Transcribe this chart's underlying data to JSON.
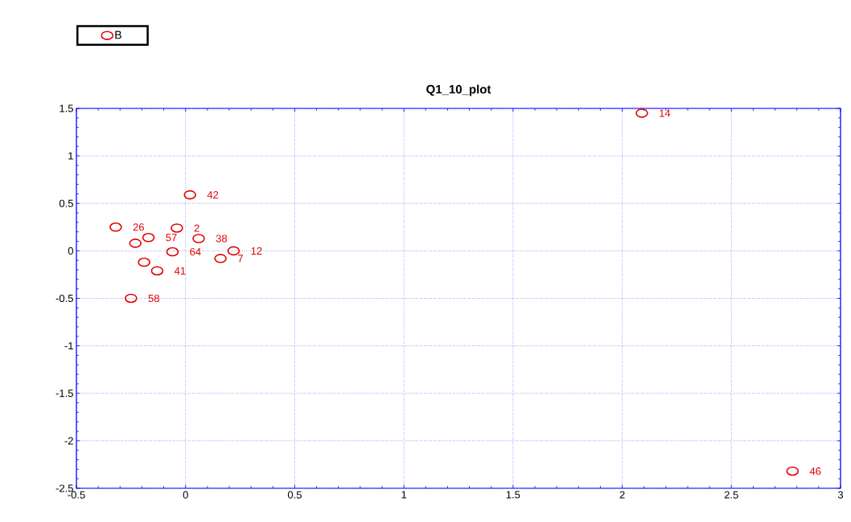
{
  "chart_data": {
    "type": "scatter",
    "title": "Q1_10_plot",
    "series": [
      {
        "name": "B",
        "color": "#e00000",
        "x": [
          2.09,
          0.02,
          -0.32,
          -0.23,
          -0.19,
          -0.13,
          -0.25,
          2.78,
          -0.17,
          -0.04,
          0.06,
          -0.06,
          0.22,
          0.16
        ],
        "values": [
          1.45,
          0.59,
          0.25,
          0.08,
          -0.12,
          -0.21,
          -0.5,
          -2.32,
          0.14,
          0.24,
          0.13,
          -0.01,
          0.0,
          -0.08
        ]
      }
    ],
    "xlim": [
      -0.5,
      3
    ],
    "ylim": [
      -2.5,
      1.5
    ],
    "xticks": [
      -0.5,
      0,
      0.5,
      1,
      1.5,
      2,
      2.5,
      3
    ],
    "yticks": [
      -2.5,
      -2,
      -1.5,
      -1,
      -0.5,
      0,
      0.5,
      1,
      1.5
    ],
    "grid": true,
    "legend": "top left",
    "marker": "circle",
    "annotations": [
      {
        "text": "14",
        "x": 2.09,
        "y": 1.45
      },
      {
        "text": "42",
        "x": 0.02,
        "y": 0.59
      },
      {
        "text": "26",
        "x": -0.32,
        "y": 0.25
      },
      {
        "text": "57",
        "x": -0.17,
        "y": 0.14
      },
      {
        "text": "2",
        "x": -0.04,
        "y": 0.24
      },
      {
        "text": "38",
        "x": 0.06,
        "y": 0.13
      },
      {
        "text": "64",
        "x": -0.06,
        "y": -0.01
      },
      {
        "text": "12",
        "x": 0.22,
        "y": 0.0
      },
      {
        "text": "7",
        "x": 0.16,
        "y": -0.08
      },
      {
        "text": "41",
        "x": -0.13,
        "y": -0.21
      },
      {
        "text": "58",
        "x": -0.25,
        "y": -0.5
      },
      {
        "text": "46",
        "x": 2.78,
        "y": -2.32
      }
    ]
  }
}
